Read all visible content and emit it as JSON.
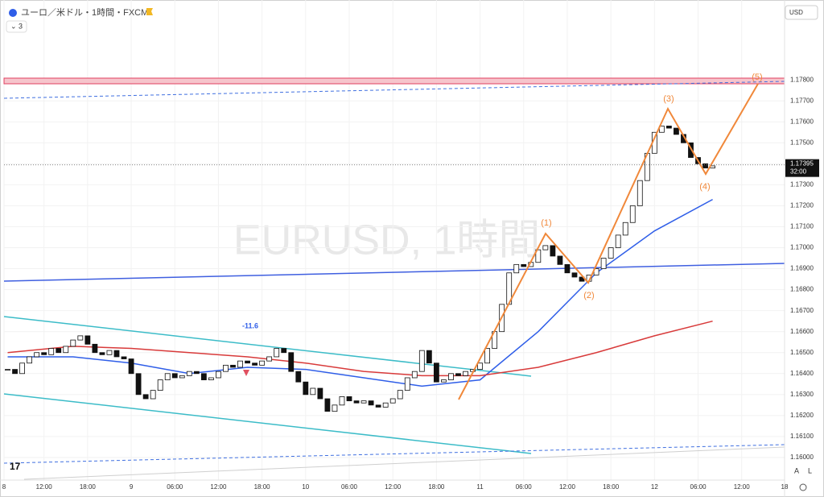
{
  "header": {
    "symbol_title": "ユーロ／米ドル・1時間・FXCM",
    "indicator_count": "3",
    "currency": "USD",
    "watermark": "EURUSD, 1時間"
  },
  "chart_data": {
    "type": "candlestick",
    "x": [
      7,
      8,
      9,
      10,
      11,
      12,
      13,
      14,
      15,
      16,
      17,
      18,
      19,
      20,
      21,
      22,
      23,
      24,
      25,
      26,
      27,
      28,
      29,
      30,
      31,
      32,
      33,
      34,
      35,
      36,
      37,
      38,
      39,
      40,
      41,
      42,
      43,
      44,
      45,
      46,
      47,
      48,
      49,
      50,
      51,
      52,
      53,
      54,
      55,
      56,
      57,
      58,
      59,
      60,
      61,
      62,
      63,
      64,
      65,
      66,
      67,
      68,
      69,
      70,
      71,
      72,
      73,
      74,
      75,
      76,
      77,
      78,
      79,
      80,
      81,
      82,
      83,
      84,
      85,
      86,
      87,
      88,
      89,
      90,
      91,
      92,
      93,
      94,
      95,
      96,
      97,
      98,
      99,
      100,
      101,
      102,
      103,
      104
    ],
    "close": [
      1.1642,
      1.164,
      1.1645,
      1.1648,
      1.165,
      1.1649,
      1.1652,
      1.165,
      1.1653,
      1.1656,
      1.1658,
      1.1654,
      1.165,
      1.1649,
      1.1651,
      1.1648,
      1.1647,
      1.164,
      1.163,
      1.1628,
      1.1632,
      1.1637,
      1.164,
      1.1638,
      1.1639,
      1.1641,
      1.164,
      1.1637,
      1.1638,
      1.1641,
      1.1644,
      1.1643,
      1.1646,
      1.1645,
      1.1644,
      1.1646,
      1.1648,
      1.1652,
      1.165,
      1.1641,
      1.1636,
      1.163,
      1.1633,
      1.1628,
      1.1622,
      1.1625,
      1.1629,
      1.1627,
      1.1626,
      1.1627,
      1.1625,
      1.1624,
      1.1626,
      1.1628,
      1.1632,
      1.1638,
      1.1641,
      1.1651,
      1.1645,
      1.1636,
      1.1637,
      1.164,
      1.1639,
      1.1641,
      1.1642,
      1.1645,
      1.1652,
      1.166,
      1.1673,
      1.1688,
      1.1692,
      1.1691,
      1.1693,
      1.1699,
      1.1701,
      1.1696,
      1.1692,
      1.1688,
      1.1686,
      1.1684,
      1.1687,
      1.169,
      1.1695,
      1.17,
      1.1706,
      1.1712,
      1.172,
      1.1732,
      1.1745,
      1.1755,
      1.1758,
      1.1757,
      1.1754,
      1.175,
      1.1743,
      1.174,
      1.1738,
      1.1739
    ],
    "lines": [
      {
        "color": "#2f5ee8",
        "x": [
          7,
          16,
          24,
          32,
          40,
          48,
          56,
          64,
          72,
          80,
          88,
          96,
          104
        ],
        "values": [
          1.1648,
          1.1648,
          1.1645,
          1.164,
          1.1643,
          1.1642,
          1.1638,
          1.1634,
          1.1637,
          1.166,
          1.1688,
          1.1708,
          1.1723
        ]
      },
      {
        "color": "#d83a3a",
        "x": [
          7,
          16,
          24,
          32,
          40,
          48,
          56,
          64,
          72,
          80,
          88,
          96,
          104
        ],
        "values": [
          1.165,
          1.1653,
          1.1652,
          1.165,
          1.1648,
          1.1645,
          1.1641,
          1.1639,
          1.1639,
          1.1643,
          1.165,
          1.1658,
          1.1665
        ]
      }
    ],
    "xlim": [
      6.5,
      113.9
    ],
    "ylim": [
      1.159,
      1.1815
    ],
    "xticks": [
      {
        "value": 6.5,
        "label": "8"
      },
      {
        "value": 12,
        "label": "12:00"
      },
      {
        "value": 18,
        "label": "18:00"
      },
      {
        "value": 24,
        "label": "9"
      },
      {
        "value": 30,
        "label": "06:00"
      },
      {
        "value": 36,
        "label": "12:00"
      },
      {
        "value": 42,
        "label": "18:00"
      },
      {
        "value": 48,
        "label": "10"
      },
      {
        "value": 54,
        "label": "06:00"
      },
      {
        "value": 60,
        "label": "12:00"
      },
      {
        "value": 66,
        "label": "18:00"
      },
      {
        "value": 72,
        "label": "11"
      },
      {
        "value": 78,
        "label": "06:00"
      },
      {
        "value": 84,
        "label": "12:00"
      },
      {
        "value": 90,
        "label": "18:00"
      },
      {
        "value": 96,
        "label": "12"
      },
      {
        "value": 102,
        "label": "06:00"
      },
      {
        "value": 108,
        "label": "12:00"
      },
      {
        "value": 113.9,
        "label": "18"
      }
    ],
    "yticks": [
      {
        "value": 1.16,
        "label": "1.16000"
      },
      {
        "value": 1.161,
        "label": "1.16100"
      },
      {
        "value": 1.162,
        "label": "1.16200"
      },
      {
        "value": 1.163,
        "label": "1.16300"
      },
      {
        "value": 1.164,
        "label": "1.16400"
      },
      {
        "value": 1.165,
        "label": "1.16500"
      },
      {
        "value": 1.166,
        "label": "1.16600"
      },
      {
        "value": 1.167,
        "label": "1.16700"
      },
      {
        "value": 1.168,
        "label": "1.16800"
      },
      {
        "value": 1.169,
        "label": "1.16900"
      },
      {
        "value": 1.17,
        "label": "1.17000"
      },
      {
        "value": 1.171,
        "label": "1.17100"
      },
      {
        "value": 1.172,
        "label": "1.17200"
      },
      {
        "value": 1.173,
        "label": "1.17300"
      },
      {
        "value": 1.174,
        "label": "1.17400"
      },
      {
        "value": 1.175,
        "label": "1.17500"
      },
      {
        "value": 1.176,
        "label": "1.17600"
      },
      {
        "value": 1.177,
        "label": "1.17700"
      },
      {
        "value": 1.178,
        "label": "1.17800"
      }
    ],
    "last_price": {
      "value": 1.17395,
      "label": "1.17395",
      "countdown": "32:00"
    },
    "grid": true
  },
  "annotations": {
    "wave": [
      "(1)",
      "(2)",
      "(3)",
      "(4)",
      "(5)"
    ],
    "marker": "-11.6",
    "scale_buttons": [
      "A",
      "L"
    ]
  }
}
